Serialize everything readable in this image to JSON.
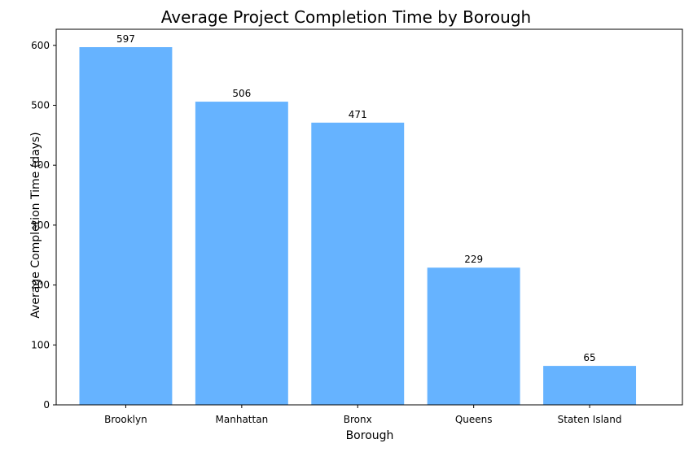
{
  "chart_data": {
    "type": "bar",
    "title": "Average Project Completion Time by Borough",
    "xlabel": "Borough",
    "ylabel": "Average Completion Time (days)",
    "categories": [
      "Brooklyn",
      "Manhattan",
      "Bronx",
      "Queens",
      "Staten Island"
    ],
    "values": [
      597,
      506,
      471,
      229,
      65
    ],
    "data_labels": [
      "597",
      "506",
      "471",
      "229",
      "65"
    ],
    "ylim": [
      0,
      626.85
    ],
    "yticks": [
      0,
      100,
      200,
      300,
      400,
      500,
      600
    ],
    "ytick_labels": [
      "0",
      "100",
      "200",
      "300",
      "400",
      "500",
      "600"
    ],
    "grid": false,
    "legend": "none",
    "bar_color": "#66b3ff"
  }
}
